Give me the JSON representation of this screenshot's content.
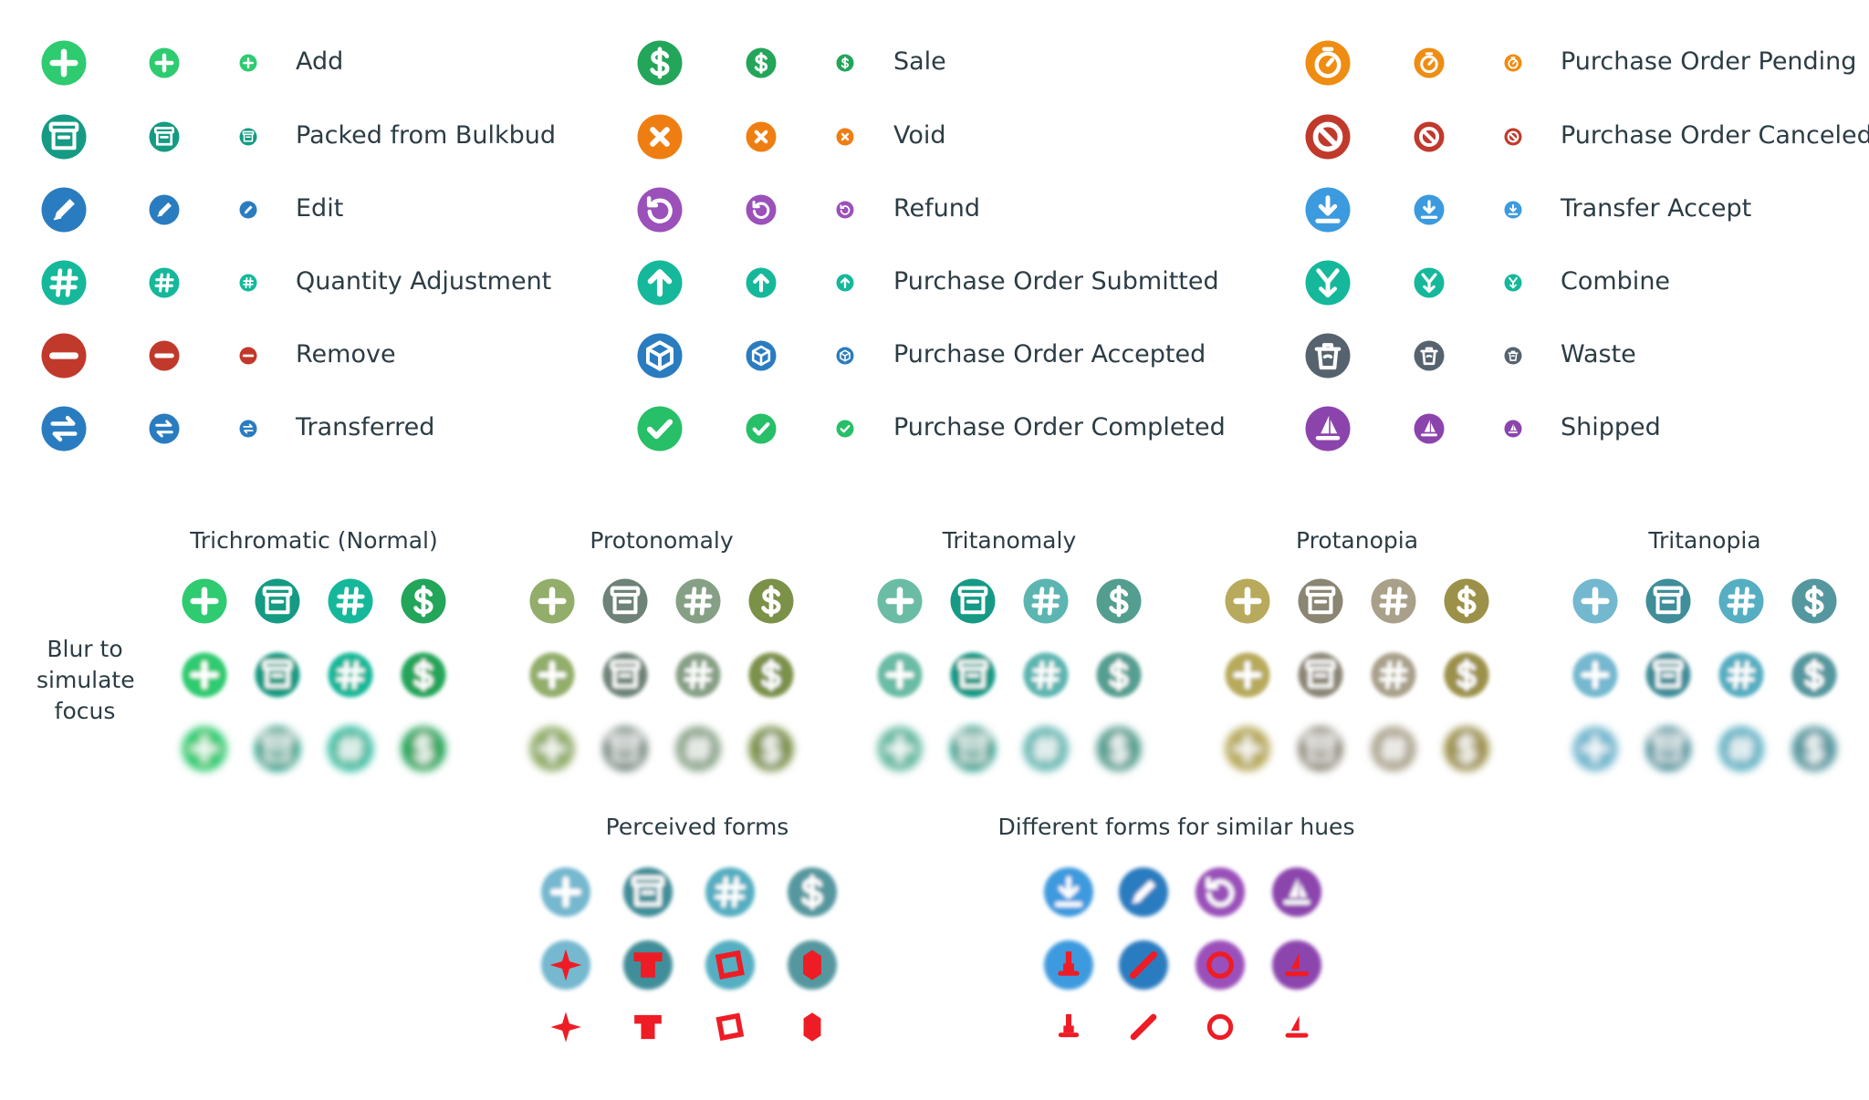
{
  "legend": {
    "columns": [
      {
        "rows": [
          {
            "label": "Add",
            "icon": "plus-icon",
            "color": "#2ecb71"
          },
          {
            "label": "Packed from Bulkbud",
            "icon": "archive-icon",
            "color": "#159b83"
          },
          {
            "label": "Edit",
            "icon": "pencil-icon",
            "color": "#2a7cc0"
          },
          {
            "label": "Quantity Adjustment",
            "icon": "hash-icon",
            "color": "#15b89a"
          },
          {
            "label": "Remove",
            "icon": "minus-icon",
            "color": "#c1392b"
          },
          {
            "label": "Transferred",
            "icon": "transfer-arrows-icon",
            "color": "#2a7cc0"
          }
        ]
      },
      {
        "rows": [
          {
            "label": "Sale",
            "icon": "dollar-icon",
            "color": "#23a55a"
          },
          {
            "label": "Void",
            "icon": "x-icon",
            "color": "#ef7e12"
          },
          {
            "label": "Refund",
            "icon": "refund-icon",
            "color": "#9b50ba"
          },
          {
            "label": "Purchase Order Submitted",
            "icon": "arrow-up-icon",
            "color": "#15b89a"
          },
          {
            "label": "Purchase Order Accepted",
            "icon": "box-icon",
            "color": "#2a7cc0"
          },
          {
            "label": "Purchase Order Completed",
            "icon": "check-icon",
            "color": "#27bf68"
          }
        ]
      },
      {
        "rows": [
          {
            "label": "Purchase Order Pending",
            "icon": "timer-icon",
            "color": "#ef8c12"
          },
          {
            "label": "Purchase Order Canceled",
            "icon": "ban-icon",
            "color": "#c1392b"
          },
          {
            "label": "Transfer Accept",
            "icon": "download-icon",
            "color": "#3c9ade"
          },
          {
            "label": "Combine",
            "icon": "combine-icon",
            "color": "#15b89a"
          },
          {
            "label": "Waste",
            "icon": "trash-icon",
            "color": "#56636f"
          },
          {
            "label": "Shipped",
            "icon": "sailboat-icon",
            "color": "#8c44ad"
          }
        ]
      }
    ]
  },
  "simulations": {
    "blur_label": "Blur to simulate focus",
    "icons": [
      "plus-icon",
      "archive-icon",
      "hash-icon",
      "dollar-icon"
    ],
    "panels": [
      {
        "title": "Trichromatic (Normal)",
        "colors": [
          "#2ecb71",
          "#159b83",
          "#15b89a",
          "#23a55a"
        ]
      },
      {
        "title": "Protonomaly",
        "colors": [
          "#93ad6b",
          "#6e8378",
          "#86a085",
          "#7c9148"
        ]
      },
      {
        "title": "Tritanomaly",
        "colors": [
          "#6bbca5",
          "#169a86",
          "#5cb5b0",
          "#549e90"
        ]
      },
      {
        "title": "Protanopia",
        "colors": [
          "#b8aa5c",
          "#8b8574",
          "#a9a089",
          "#9c9148"
        ]
      },
      {
        "title": "Tritanopia",
        "colors": [
          "#74b8cf",
          "#3f8e99",
          "#55aec1",
          "#55979f"
        ]
      }
    ]
  },
  "perceived_forms": {
    "title": "Perceived forms",
    "icons": [
      "plus-icon",
      "archive-icon",
      "hash-icon",
      "dollar-icon"
    ],
    "colors": [
      "#74b8cf",
      "#3f8e99",
      "#55aec1",
      "#55979f"
    ],
    "shapes": [
      "star-shape",
      "tshirt-shape",
      "square-shape",
      "hexagon-shape"
    ]
  },
  "different_forms": {
    "title": "Different forms for similar hues",
    "icons": [
      "download-icon",
      "pencil-icon",
      "refund-icon",
      "sailboat-icon"
    ],
    "colors": [
      "#3c9ade",
      "#2a7cc0",
      "#9b50ba",
      "#8c44ad"
    ],
    "shapes": [
      "stamp-shape",
      "slash-shape",
      "ring-shape",
      "sail-shape"
    ],
    "accent": "#ee1c25"
  }
}
